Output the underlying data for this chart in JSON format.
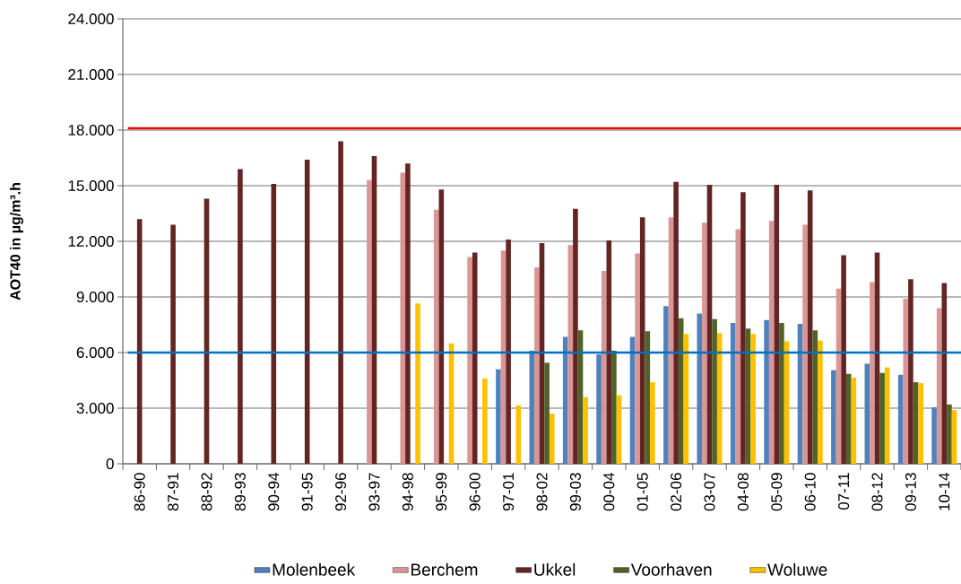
{
  "chart_data": {
    "type": "bar",
    "ylabel": "AOT40 in µg/m³.h",
    "categories": [
      "86-90",
      "87-91",
      "88-92",
      "89-93",
      "90-94",
      "91-95",
      "92-96",
      "93-97",
      "94-98",
      "95-99",
      "96-00",
      "97-01",
      "98-02",
      "99-03",
      "00-04",
      "01-05",
      "02-06",
      "03-07",
      "04-08",
      "05-09",
      "06-10",
      "07-11",
      "08-12",
      "09-13",
      "10-14"
    ],
    "series": [
      {
        "name": "Molenbeek",
        "color": "#4f81bd",
        "values": [
          null,
          null,
          null,
          null,
          null,
          null,
          null,
          null,
          null,
          null,
          null,
          5100,
          6100,
          6850,
          5900,
          6850,
          8500,
          8100,
          7600,
          7750,
          7550,
          5050,
          5400,
          4800,
          3050
        ]
      },
      {
        "name": "Berchem",
        "color": "#d99694",
        "values": [
          null,
          null,
          null,
          null,
          null,
          null,
          null,
          15300,
          15700,
          13700,
          11150,
          11500,
          10600,
          11800,
          10400,
          11350,
          13300,
          13000,
          12650,
          13100,
          12900,
          9450,
          9800,
          8900,
          8400
        ]
      },
      {
        "name": "Ukkel",
        "color": "#632523",
        "values": [
          13200,
          12900,
          14300,
          15900,
          15100,
          16400,
          17400,
          16600,
          16200,
          14800,
          11400,
          12100,
          11900,
          13750,
          12050,
          13300,
          15200,
          15050,
          14650,
          15050,
          14750,
          11250,
          11400,
          9950,
          9750
        ]
      },
      {
        "name": "Voorhaven",
        "color": "#4f6228",
        "values": [
          null,
          null,
          null,
          null,
          null,
          null,
          null,
          null,
          null,
          null,
          null,
          null,
          5450,
          7200,
          6100,
          7150,
          7850,
          7800,
          7300,
          7600,
          7200,
          4850,
          4900,
          4400,
          3200
        ]
      },
      {
        "name": "Woluwe",
        "color": "#ffc000",
        "values": [
          null,
          null,
          null,
          null,
          null,
          null,
          null,
          null,
          8650,
          6500,
          4600,
          3150,
          2700,
          3600,
          3700,
          4400,
          7000,
          7050,
          7000,
          6600,
          6650,
          4650,
          5200,
          4350,
          2900
        ]
      }
    ],
    "ylim": [
      0,
      24000
    ],
    "yticks": [
      {
        "value": 0,
        "label": "0"
      },
      {
        "value": 3000,
        "label": "3.000"
      },
      {
        "value": 6000,
        "label": "6.000"
      },
      {
        "value": 9000,
        "label": "9.000"
      },
      {
        "value": 12000,
        "label": "12.000"
      },
      {
        "value": 15000,
        "label": "15.000"
      },
      {
        "value": 18000,
        "label": "18.000"
      },
      {
        "value": 21000,
        "label": "21.000"
      },
      {
        "value": 24000,
        "label": "24.000"
      }
    ],
    "ref_lines": [
      {
        "axis": "y",
        "value": 18100,
        "color": "#ff0000"
      },
      {
        "axis": "y",
        "value": 6000,
        "color": "#0070c0"
      }
    ],
    "grid": "y",
    "legend": "bottom"
  }
}
